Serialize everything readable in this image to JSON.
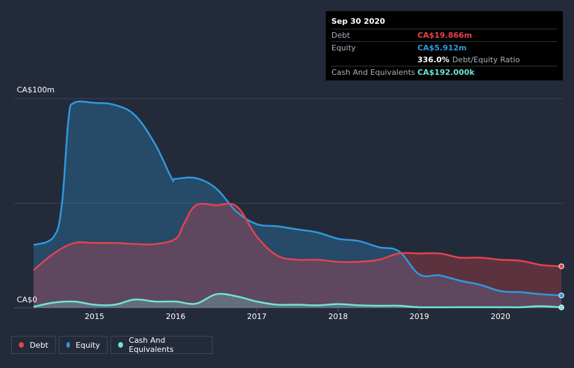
{
  "tooltip": {
    "date": "Sep 30 2020",
    "debt_label": "Debt",
    "debt_value": "CA$19.866m",
    "equity_label": "Equity",
    "equity_value": "CA$5.912m",
    "ratio_value": "336.0%",
    "ratio_label": "Debt/Equity Ratio",
    "cash_label": "Cash And Equivalents",
    "cash_value": "CA$192.000k"
  },
  "legend": {
    "debt": "Debt",
    "equity": "Equity",
    "cash": "Cash And Equivalents"
  },
  "colors": {
    "debt": "#e4434d",
    "equity": "#2e9ae0",
    "cash": "#6ee6d6",
    "background": "#232b3a"
  },
  "chart_data": {
    "type": "area",
    "y_unit": "CA$m",
    "ylim": [
      0,
      100
    ],
    "y_tick_labels": {
      "top": "CA$100m",
      "bottom": "CA$0"
    },
    "x_ticks": [
      {
        "label": "2015",
        "value": 2015.0
      },
      {
        "label": "2016",
        "value": 2016.0
      },
      {
        "label": "2017",
        "value": 2017.0
      },
      {
        "label": "2018",
        "value": 2018.0
      },
      {
        "label": "2019",
        "value": 2019.0
      },
      {
        "label": "2020",
        "value": 2020.0
      }
    ],
    "xlim": [
      2014.2,
      2020.75
    ],
    "series": [
      {
        "name": "Equity",
        "points": [
          [
            2014.25,
            30.0
          ],
          [
            2014.5,
            34.0
          ],
          [
            2014.6,
            50.0
          ],
          [
            2014.68,
            90.0
          ],
          [
            2014.75,
            98.0
          ],
          [
            2015.0,
            98.0
          ],
          [
            2015.25,
            97.0
          ],
          [
            2015.5,
            92.0
          ],
          [
            2015.75,
            78.0
          ],
          [
            2015.95,
            62.0
          ],
          [
            2016.0,
            61.7
          ],
          [
            2016.25,
            62.0
          ],
          [
            2016.5,
            57.0
          ],
          [
            2016.75,
            46.0
          ],
          [
            2017.0,
            40.0
          ],
          [
            2017.25,
            39.0
          ],
          [
            2017.5,
            37.5
          ],
          [
            2017.75,
            36.0
          ],
          [
            2018.0,
            33.0
          ],
          [
            2018.25,
            32.0
          ],
          [
            2018.5,
            29.0
          ],
          [
            2018.75,
            27.0
          ],
          [
            2019.0,
            16.0
          ],
          [
            2019.25,
            15.5
          ],
          [
            2019.5,
            13.0
          ],
          [
            2019.75,
            11.0
          ],
          [
            2020.0,
            8.0
          ],
          [
            2020.25,
            7.5
          ],
          [
            2020.5,
            6.5
          ],
          [
            2020.75,
            5.912
          ]
        ]
      },
      {
        "name": "Debt",
        "points": [
          [
            2014.25,
            18.0
          ],
          [
            2014.5,
            26.0
          ],
          [
            2014.75,
            31.0
          ],
          [
            2015.0,
            31.0
          ],
          [
            2015.25,
            31.0
          ],
          [
            2015.5,
            30.5
          ],
          [
            2015.75,
            30.5
          ],
          [
            2016.0,
            33.0
          ],
          [
            2016.1,
            40.0
          ],
          [
            2016.25,
            49.0
          ],
          [
            2016.5,
            49.0
          ],
          [
            2016.75,
            48.5
          ],
          [
            2017.0,
            34.0
          ],
          [
            2017.25,
            25.0
          ],
          [
            2017.5,
            23.0
          ],
          [
            2017.75,
            23.0
          ],
          [
            2018.0,
            22.0
          ],
          [
            2018.25,
            22.0
          ],
          [
            2018.5,
            23.0
          ],
          [
            2018.75,
            26.0
          ],
          [
            2019.0,
            26.0
          ],
          [
            2019.25,
            26.0
          ],
          [
            2019.5,
            24.0
          ],
          [
            2019.75,
            24.0
          ],
          [
            2020.0,
            23.0
          ],
          [
            2020.25,
            22.5
          ],
          [
            2020.5,
            20.5
          ],
          [
            2020.75,
            19.866
          ]
        ]
      },
      {
        "name": "Cash And Equivalents",
        "points": [
          [
            2014.25,
            0.5
          ],
          [
            2014.5,
            2.5
          ],
          [
            2014.75,
            3.0
          ],
          [
            2015.0,
            1.5
          ],
          [
            2015.25,
            1.5
          ],
          [
            2015.5,
            4.0
          ],
          [
            2015.75,
            3.0
          ],
          [
            2016.0,
            3.0
          ],
          [
            2016.25,
            2.0
          ],
          [
            2016.5,
            6.5
          ],
          [
            2016.75,
            5.5
          ],
          [
            2017.0,
            3.0
          ],
          [
            2017.25,
            1.5
          ],
          [
            2017.5,
            1.5
          ],
          [
            2017.75,
            1.2
          ],
          [
            2018.0,
            1.8
          ],
          [
            2018.25,
            1.2
          ],
          [
            2018.5,
            1.0
          ],
          [
            2018.75,
            1.0
          ],
          [
            2019.0,
            0.3
          ],
          [
            2019.5,
            0.3
          ],
          [
            2020.0,
            0.3
          ],
          [
            2020.25,
            0.3
          ],
          [
            2020.5,
            0.8
          ],
          [
            2020.75,
            0.192
          ]
        ]
      }
    ]
  }
}
